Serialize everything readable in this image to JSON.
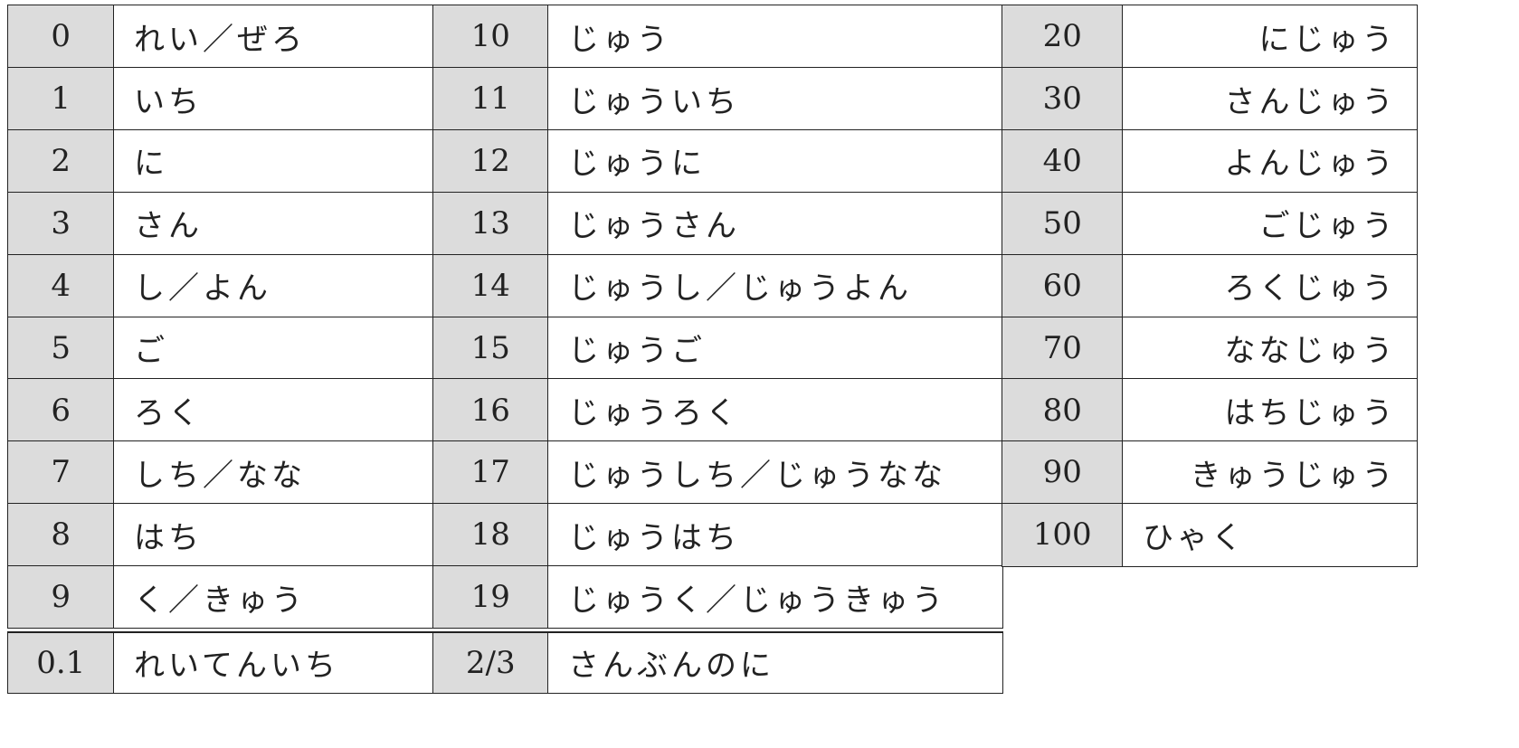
{
  "table": {
    "groups": [
      {
        "rows": [
          [
            "0",
            "れい／ぜろ"
          ],
          [
            "1",
            "いち"
          ],
          [
            "2",
            "に"
          ],
          [
            "3",
            "さん"
          ],
          [
            "4",
            "し／よん"
          ],
          [
            "5",
            "ご"
          ],
          [
            "6",
            "ろく"
          ],
          [
            "7",
            "しち／なな"
          ],
          [
            "8",
            "はち"
          ],
          [
            "9",
            "く／きゅう"
          ]
        ],
        "extra": [
          "0.1",
          "れいてんいち"
        ]
      },
      {
        "rows": [
          [
            "10",
            "じゅう"
          ],
          [
            "11",
            "じゅういち"
          ],
          [
            "12",
            "じゅうに"
          ],
          [
            "13",
            "じゅうさん"
          ],
          [
            "14",
            "じゅうし／じゅうよん"
          ],
          [
            "15",
            "じゅうご"
          ],
          [
            "16",
            "じゅうろく"
          ],
          [
            "17",
            "じゅうしち／じゅうなな"
          ],
          [
            "18",
            "じゅうはち"
          ],
          [
            "19",
            "じゅうく／じゅうきゅう"
          ]
        ],
        "extra": [
          "2/3",
          "さんぶんのに"
        ]
      },
      {
        "rows": [
          [
            "20",
            "にじゅう"
          ],
          [
            "30",
            "さんじゅう"
          ],
          [
            "40",
            "よんじゅう"
          ],
          [
            "50",
            "ごじゅう"
          ],
          [
            "60",
            "ろくじゅう"
          ],
          [
            "70",
            "ななじゅう"
          ],
          [
            "80",
            "はちじゅう"
          ],
          [
            "90",
            "きゅうじゅう"
          ],
          [
            "100",
            "ひゃく"
          ]
        ]
      }
    ]
  }
}
